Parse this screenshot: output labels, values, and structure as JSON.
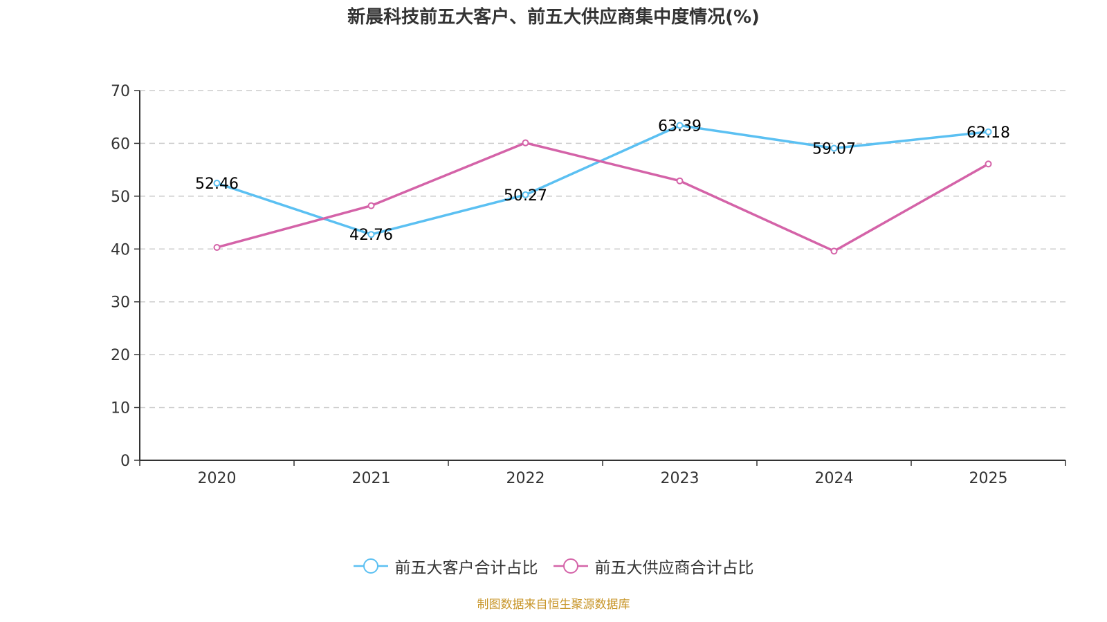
{
  "chart_data": {
    "type": "line",
    "title": "新晨科技前五大客户、前五大供应商集中度情况(%)",
    "xlabel": "",
    "ylabel": "",
    "categories": [
      "2020",
      "2021",
      "2022",
      "2023",
      "2024",
      "2025"
    ],
    "ylim": [
      0,
      70
    ],
    "yticks": [
      0,
      10,
      20,
      30,
      40,
      50,
      60,
      70
    ],
    "grid": true,
    "legend_position": "bottom-center",
    "series": [
      {
        "name": "前五大客户合计占比",
        "color": "#5bc0f2",
        "values": [
          52.46,
          42.76,
          50.27,
          63.39,
          59.07,
          62.18
        ],
        "labels": [
          "52.46",
          "42.76",
          "50.27",
          "63.39",
          "59.07",
          "62.18"
        ],
        "show_labels": true
      },
      {
        "name": "前五大供应商合计占比",
        "color": "#d463a8",
        "values": [
          40.3,
          48.2,
          60.1,
          52.9,
          39.6,
          56.1
        ],
        "show_labels": false
      }
    ]
  },
  "source_note": "制图数据来自恒生聚源数据库"
}
